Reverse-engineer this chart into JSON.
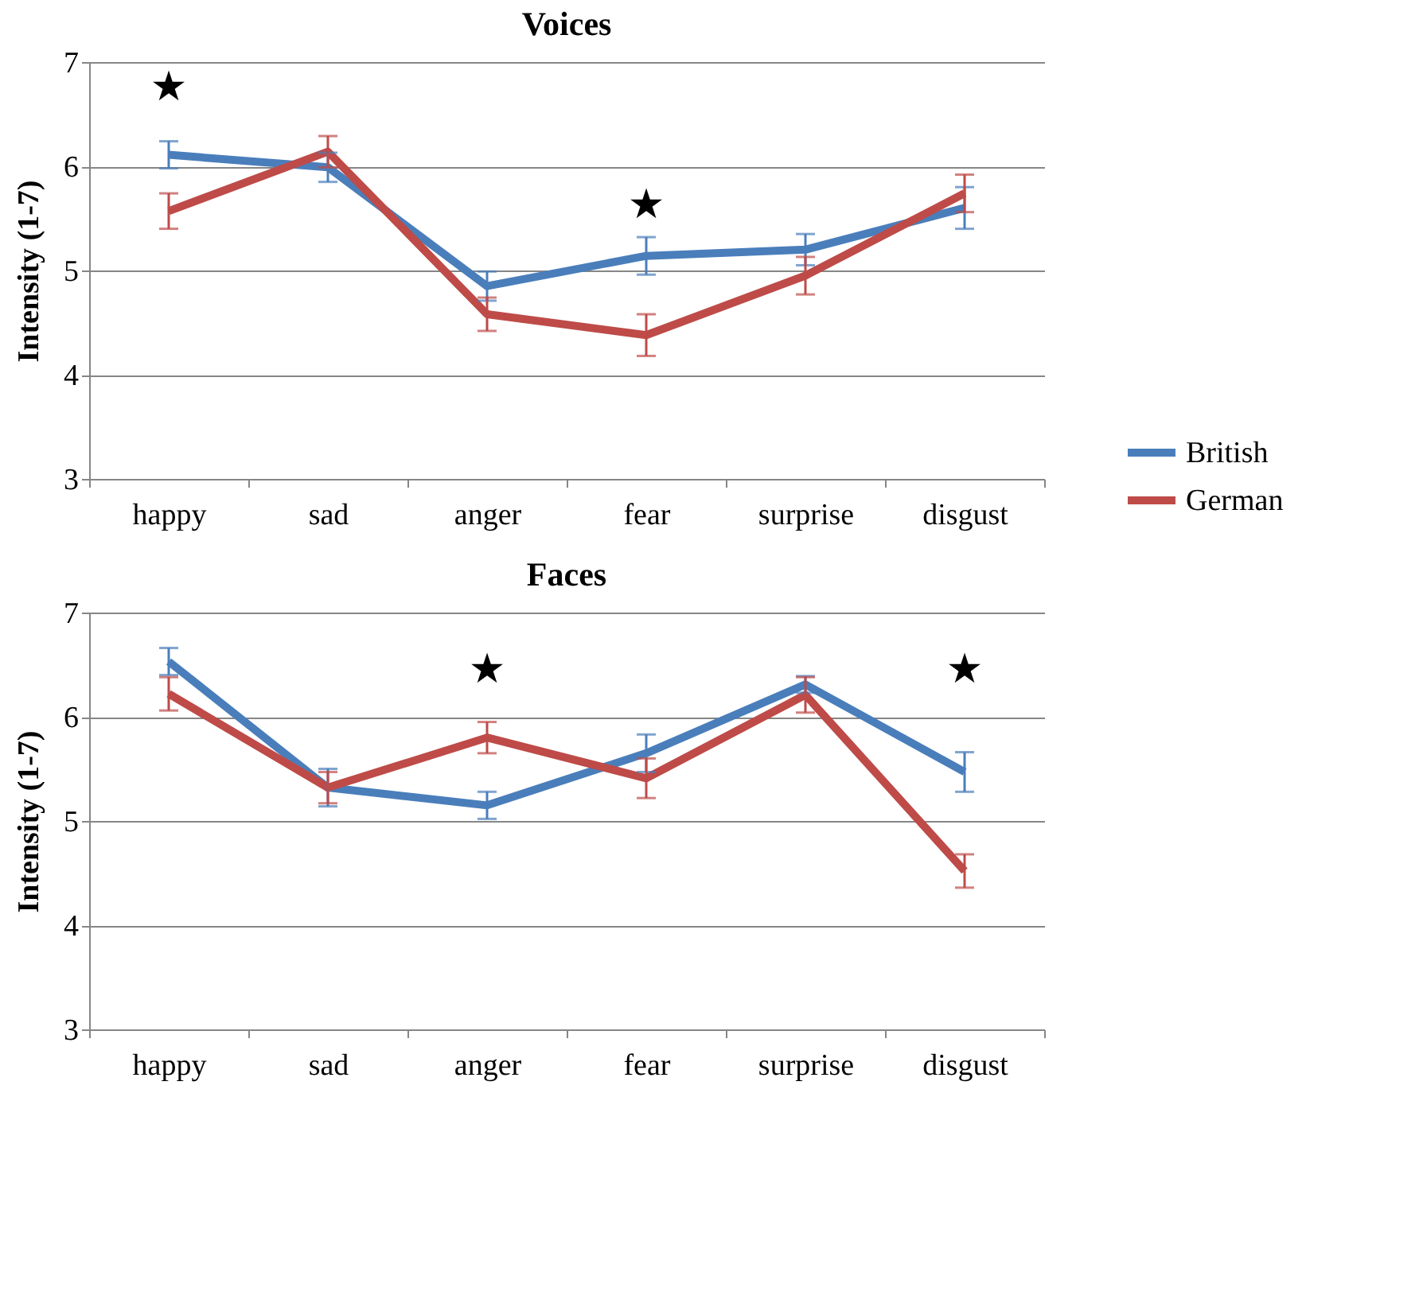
{
  "chart_data": [
    {
      "type": "line",
      "title": "Voices",
      "ylabel": "Intensity (1-7)",
      "categories": [
        "happy",
        "sad",
        "anger",
        "fear",
        "surprise",
        "disgust"
      ],
      "ylim": [
        3,
        7
      ],
      "yticks": [
        3,
        4,
        5,
        6,
        7
      ],
      "grid": "y",
      "legend": "right",
      "series": [
        {
          "name": "British",
          "color": "#4a7ebb",
          "values": [
            6.11,
            5.99,
            4.85,
            5.14,
            5.2,
            5.6
          ],
          "errors": [
            0.13,
            0.14,
            0.14,
            0.18,
            0.15,
            0.2
          ]
        },
        {
          "name": "German",
          "color": "#be4b48",
          "values": [
            5.57,
            6.14,
            4.58,
            4.38,
            4.95,
            5.74
          ],
          "errors": [
            0.17,
            0.15,
            0.16,
            0.2,
            0.18,
            0.18
          ]
        }
      ],
      "annotations": [
        "★",
        "★"
      ]
    },
    {
      "type": "line",
      "title": "Faces",
      "ylabel": "Intensity (1-7)",
      "categories": [
        "happy",
        "sad",
        "anger",
        "fear",
        "surprise",
        "disgust"
      ],
      "ylim": [
        3,
        7
      ],
      "yticks": [
        3,
        4,
        5,
        6,
        7
      ],
      "grid": "y",
      "series": [
        {
          "color": "#4a7ebb",
          "values": [
            6.53,
            5.32,
            5.15,
            5.65,
            6.31,
            5.47
          ],
          "errors": [
            0.13,
            0.18,
            0.13,
            0.18,
            0.08,
            0.19
          ]
        },
        {
          "color": "#be4b48",
          "values": [
            6.22,
            5.32,
            5.8,
            5.41,
            6.21,
            4.52
          ],
          "errors": [
            0.16,
            0.15,
            0.15,
            0.19,
            0.17,
            0.16
          ]
        }
      ],
      "annotations": [
        "★",
        "★"
      ]
    }
  ]
}
